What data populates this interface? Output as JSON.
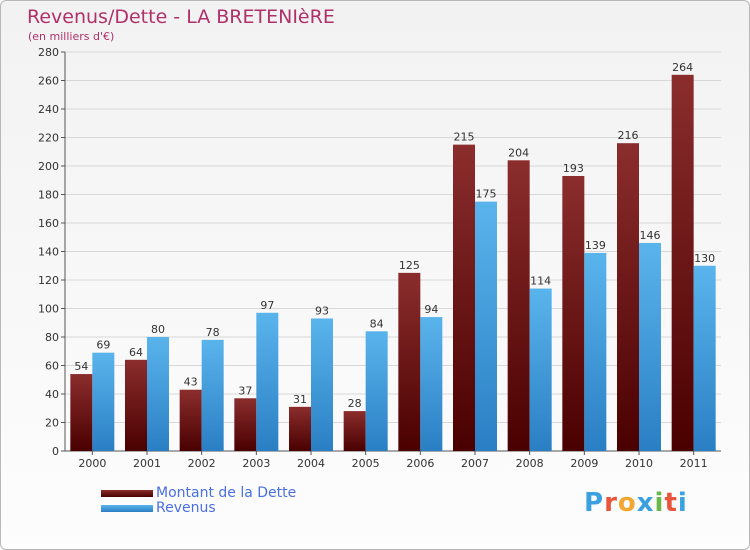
{
  "header": {
    "title": "Revenus/Dette - LA BRETENIèRE",
    "subtitle": "(en milliers d'€)"
  },
  "logo": {
    "text": "Proxiti",
    "letters": [
      "P",
      "r",
      "o",
      "x",
      "i",
      "t",
      "i"
    ],
    "letter_colors": [
      "#3aa0e0",
      "#e8553a",
      "#f2a830",
      "#3aa0e0",
      "#6ab84a",
      "#e8553a",
      "#3aa0e0"
    ]
  },
  "colors": {
    "dette_top": "#8b2d2d",
    "dette_bottom": "#4a0000",
    "revenus_top": "#5ab4ec",
    "revenus_bottom": "#2a7fc4",
    "title": "#b0306a",
    "legend_text": "#4a6fe0"
  },
  "chart_data": {
    "type": "bar",
    "title": "Revenus/Dette - LA BRETENIèRE",
    "subtitle": "(en milliers d'€)",
    "categories": [
      "2000",
      "2001",
      "2002",
      "2003",
      "2004",
      "2005",
      "2006",
      "2007",
      "2008",
      "2009",
      "2010",
      "2011"
    ],
    "series": [
      {
        "name": "Montant de la Dette",
        "values": [
          54,
          64,
          43,
          37,
          31,
          28,
          125,
          215,
          204,
          193,
          216,
          264
        ]
      },
      {
        "name": "Revenus",
        "values": [
          69,
          80,
          78,
          97,
          93,
          84,
          94,
          175,
          114,
          139,
          146,
          130
        ]
      }
    ],
    "ylim": [
      0,
      280
    ],
    "yticks": [
      0,
      20,
      40,
      60,
      80,
      100,
      120,
      140,
      160,
      180,
      200,
      220,
      240,
      260,
      280
    ],
    "grid": true,
    "legend_position": "bottom-left"
  }
}
